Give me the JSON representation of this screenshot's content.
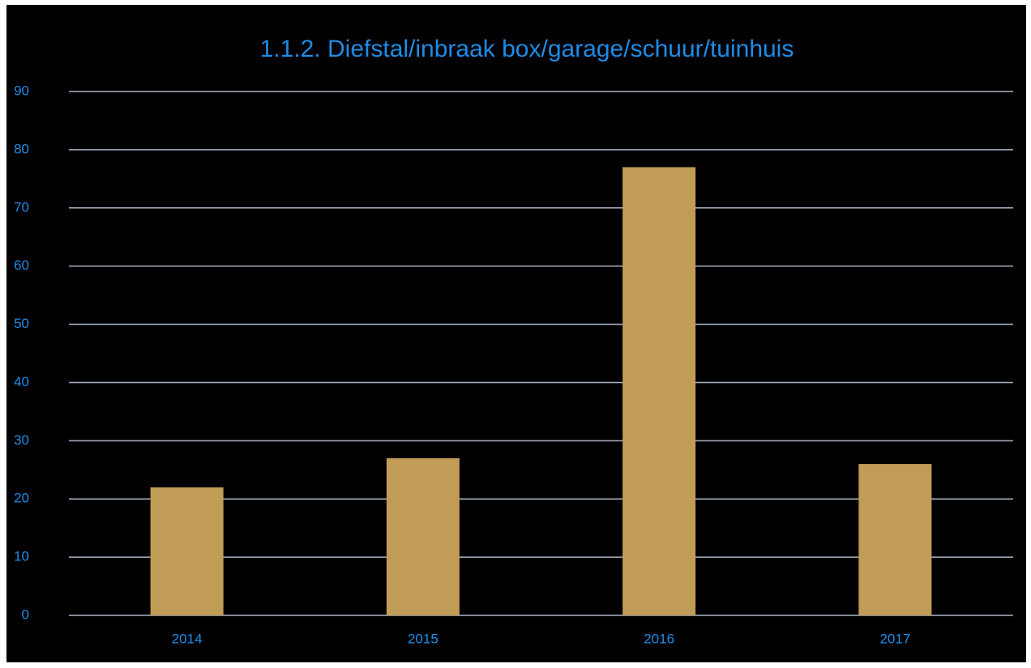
{
  "chart_data": {
    "type": "bar",
    "title": "1.1.2. Diefstal/inbraak box/garage/schuur/tuinhuis",
    "categories": [
      "2014",
      "2015",
      "2016",
      "2017"
    ],
    "values": [
      22,
      27,
      77,
      26
    ],
    "color": "#c19c56",
    "ylim": [
      0,
      90
    ],
    "yticks": [
      0,
      10,
      20,
      30,
      40,
      50,
      60,
      70,
      80,
      90
    ],
    "grid": true
  }
}
